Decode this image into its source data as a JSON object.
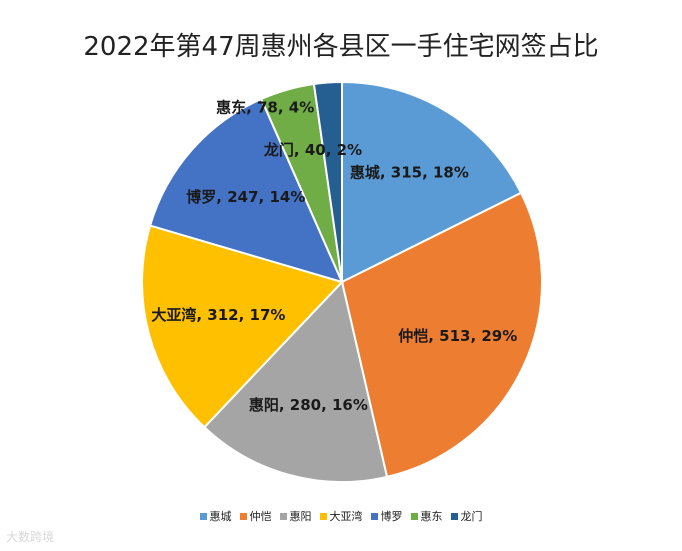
{
  "chart_data": {
    "type": "pie",
    "title": "2022年第47周惠州各县区一手住宅网签占比",
    "slices": [
      {
        "name": "惠城",
        "value": 315,
        "percent": "18%",
        "color": "#5b9bd5"
      },
      {
        "name": "仲恺",
        "value": 513,
        "percent": "29%",
        "color": "#ed7d31"
      },
      {
        "name": "惠阳",
        "value": 280,
        "percent": "16%",
        "color": "#a5a5a5"
      },
      {
        "name": "大亚湾",
        "value": 312,
        "percent": "17%",
        "color": "#ffc000"
      },
      {
        "name": "博罗",
        "value": 247,
        "percent": "14%",
        "color": "#4472c4"
      },
      {
        "name": "惠东",
        "value": 78,
        "percent": "4%",
        "color": "#70ad47"
      },
      {
        "name": "龙门",
        "value": 40,
        "percent": "2%",
        "color": "#255e91"
      }
    ],
    "legend_position": "bottom"
  },
  "watermark": {
    "source_text": "大数跨境"
  }
}
